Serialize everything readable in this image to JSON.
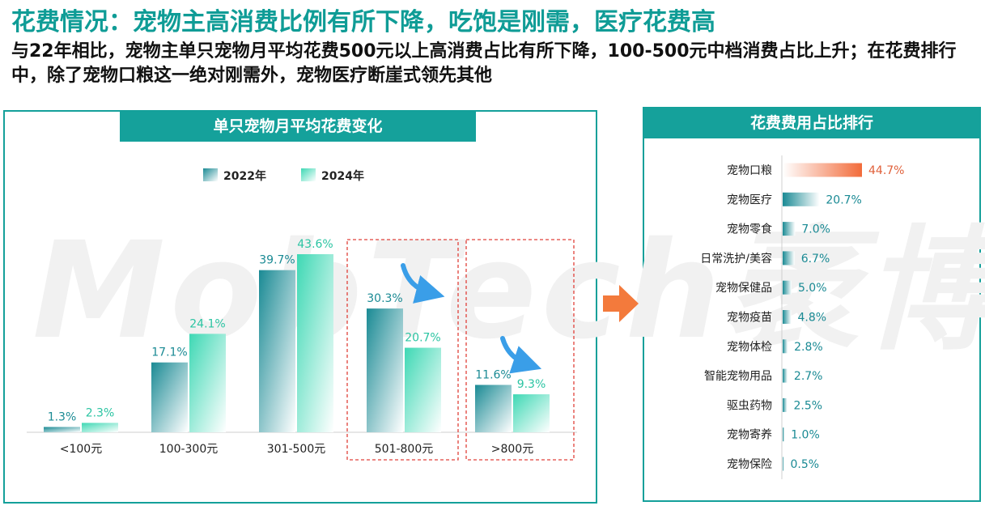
{
  "header": {
    "title": "花费情况：宠物主高消费比例有所下降，吃饱是刚需，医疗花费高",
    "subtitle": "与22年相比，宠物主单只宠物月平均花费500元以上高消费占比有所下降，100-500元中档消费占比上升；在花费排行中，除了宠物口粮这一绝对刚需外，宠物医疗断崖式领先其他"
  },
  "watermark": "MobTech袤博",
  "colors": {
    "accent": "#15a19b",
    "series_2022": "#1a8a94",
    "series_2024": "#3ed8b4",
    "top_rank": "#f26b3a",
    "dashed_box": "#e0413a",
    "arrow": "#3a9ee8"
  },
  "chart_data": [
    {
      "type": "bar",
      "title": "单只宠物月平均花费变化",
      "categories": [
        "<100元",
        "100-300元",
        "301-500元",
        "501-800元",
        ">800元"
      ],
      "series": [
        {
          "name": "2022年",
          "values": [
            1.3,
            17.1,
            39.7,
            30.3,
            11.6
          ],
          "labels": [
            "1.3%",
            "17.1%",
            "39.7%",
            "30.3%",
            "11.6%"
          ]
        },
        {
          "name": "2024年",
          "values": [
            2.3,
            24.1,
            43.6,
            20.7,
            9.3
          ],
          "labels": [
            "2.3%",
            "24.1%",
            "43.6%",
            "20.7%",
            "9.3%"
          ]
        }
      ],
      "ylim": [
        0,
        50
      ],
      "legend": "top-center",
      "grid": false,
      "highlighted_categories": [
        "501-800元",
        ">800元"
      ]
    },
    {
      "type": "bar",
      "orientation": "horizontal",
      "title": "花费费用占比排行",
      "categories": [
        "宠物口粮",
        "宠物医疗",
        "宠物零食",
        "日常洗护/美容",
        "宠物保健品",
        "宠物疫苗",
        "宠物体检",
        "智能宠物用品",
        "驱虫药物",
        "宠物寄养",
        "宠物保险"
      ],
      "values": [
        44.7,
        20.7,
        7.0,
        6.7,
        5.0,
        4.8,
        2.8,
        2.7,
        2.5,
        1.0,
        0.5
      ],
      "labels": [
        "44.7%",
        "20.7%",
        "7.0%",
        "6.7%",
        "5.0%",
        "4.8%",
        "2.8%",
        "2.7%",
        "2.5%",
        "1.0%",
        "0.5%"
      ],
      "xlim": [
        0,
        50
      ],
      "grid": false
    }
  ]
}
